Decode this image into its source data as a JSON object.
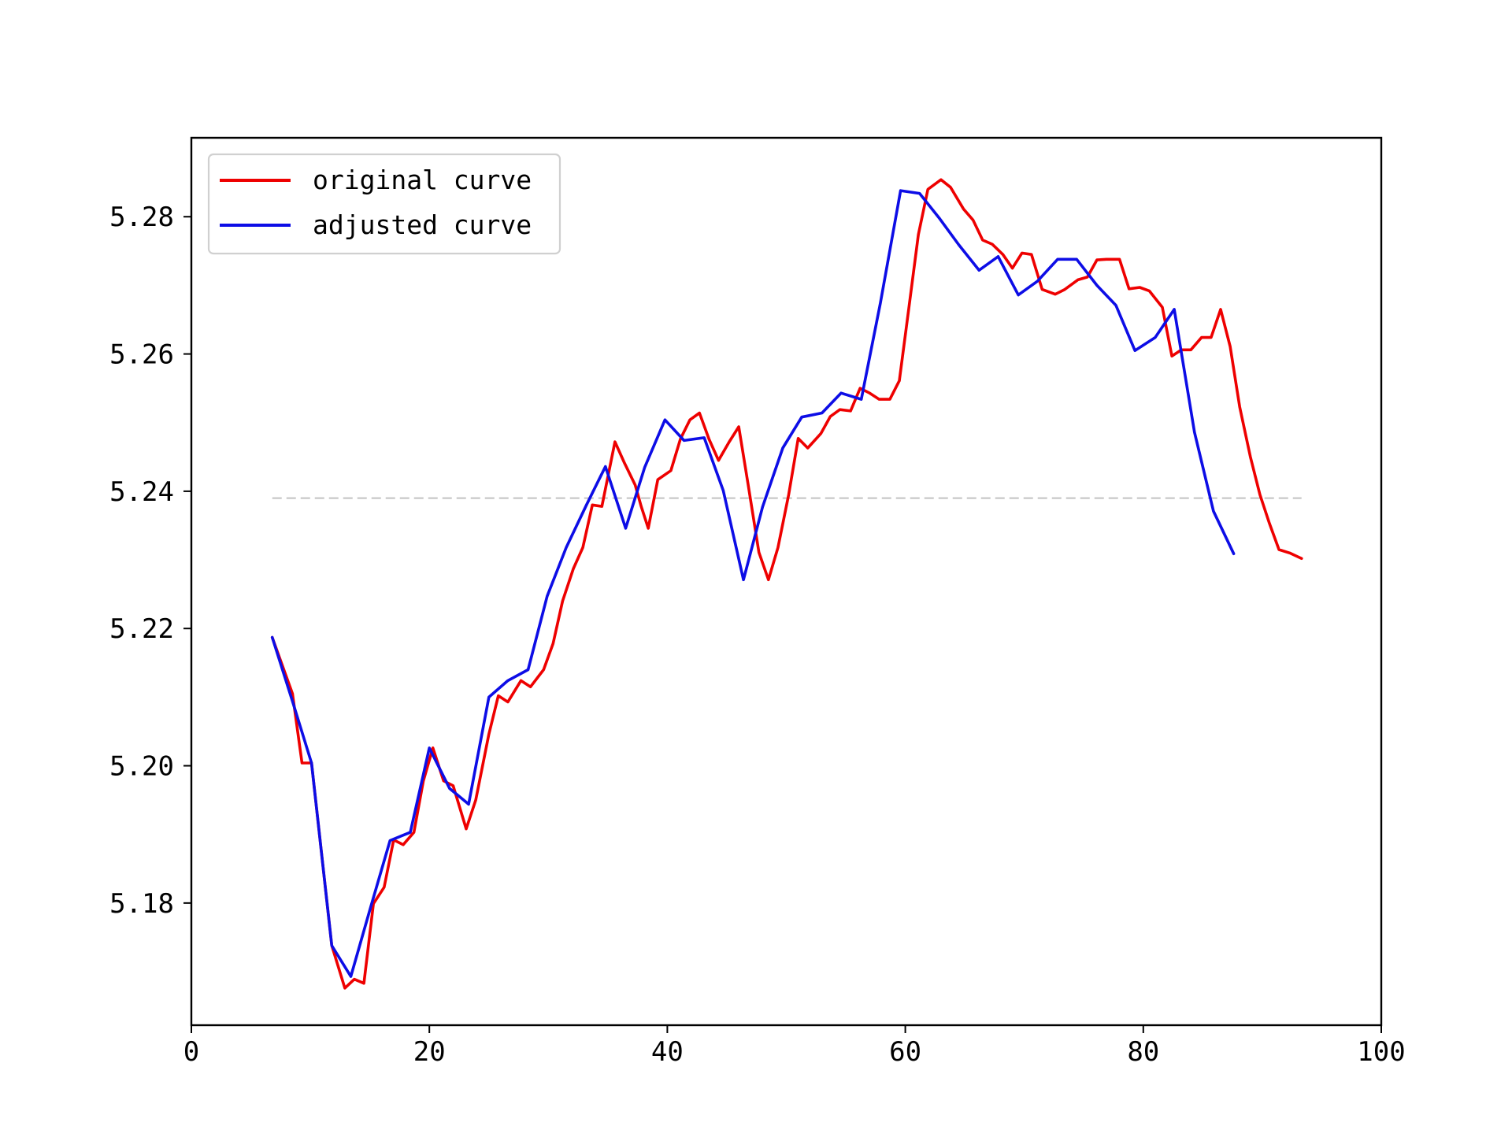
{
  "chart_data": {
    "type": "line",
    "title": "",
    "xlabel": "",
    "ylabel": "",
    "xlim": [
      0,
      100
    ],
    "ylim": [
      5.1622,
      5.2915
    ],
    "xticks": [
      0,
      20,
      40,
      60,
      80,
      100
    ],
    "yticks": [
      5.18,
      5.2,
      5.22,
      5.24,
      5.26,
      5.28
    ],
    "x_tick_labels": [
      "0",
      "20",
      "40",
      "60",
      "80",
      "100"
    ],
    "y_tick_labels": [
      "5.18",
      "5.20",
      "5.22",
      "5.24",
      "5.26",
      "5.28"
    ],
    "grid": false,
    "legend_position": "upper-left",
    "reference_line": {
      "y": 5.239,
      "x_start": 6.8,
      "x_end": 93.3,
      "color": "#c8c8c8",
      "style": "dashed"
    },
    "series": [
      {
        "name": "original curve",
        "color": "#ee0000",
        "points": [
          [
            6.8,
            5.2187
          ],
          [
            8.5,
            5.2105
          ],
          [
            9.3,
            5.2004
          ],
          [
            10.1,
            5.2004
          ],
          [
            11.8,
            5.1738
          ],
          [
            12.9,
            5.1676
          ],
          [
            13.7,
            5.1689
          ],
          [
            14.5,
            5.1683
          ],
          [
            15.3,
            5.1799
          ],
          [
            16.2,
            5.1823
          ],
          [
            17.0,
            5.1892
          ],
          [
            17.8,
            5.1885
          ],
          [
            18.7,
            5.1903
          ],
          [
            19.5,
            5.1978
          ],
          [
            20.3,
            5.2026
          ],
          [
            21.2,
            5.1978
          ],
          [
            22.0,
            5.1971
          ],
          [
            23.1,
            5.1908
          ],
          [
            23.9,
            5.195
          ],
          [
            25.0,
            5.2046
          ],
          [
            25.8,
            5.2102
          ],
          [
            26.6,
            5.2093
          ],
          [
            27.7,
            5.2124
          ],
          [
            28.5,
            5.2115
          ],
          [
            29.6,
            5.214
          ],
          [
            30.4,
            5.2178
          ],
          [
            31.2,
            5.224
          ],
          [
            32.1,
            5.2287
          ],
          [
            32.9,
            5.2318
          ],
          [
            33.7,
            5.238
          ],
          [
            34.5,
            5.2378
          ],
          [
            35.6,
            5.2472
          ],
          [
            36.4,
            5.2441
          ],
          [
            37.3,
            5.2409
          ],
          [
            37.8,
            5.2378
          ],
          [
            38.4,
            5.2346
          ],
          [
            39.2,
            5.2417
          ],
          [
            40.3,
            5.243
          ],
          [
            41.1,
            5.2476
          ],
          [
            41.9,
            5.2504
          ],
          [
            42.7,
            5.2514
          ],
          [
            43.5,
            5.2476
          ],
          [
            44.3,
            5.2445
          ],
          [
            45.2,
            5.2472
          ],
          [
            46.0,
            5.2494
          ],
          [
            46.8,
            5.2409
          ],
          [
            47.7,
            5.2311
          ],
          [
            48.5,
            5.2271
          ],
          [
            49.3,
            5.2318
          ],
          [
            50.2,
            5.2395
          ],
          [
            51.0,
            5.2477
          ],
          [
            51.8,
            5.2463
          ],
          [
            52.9,
            5.2484
          ],
          [
            53.7,
            5.2509
          ],
          [
            54.5,
            5.2519
          ],
          [
            55.4,
            5.2517
          ],
          [
            56.2,
            5.255
          ],
          [
            57.0,
            5.2543
          ],
          [
            57.8,
            5.2534
          ],
          [
            58.7,
            5.2534
          ],
          [
            59.5,
            5.2561
          ],
          [
            60.3,
            5.2667
          ],
          [
            61.1,
            5.2774
          ],
          [
            61.9,
            5.284
          ],
          [
            63.0,
            5.2854
          ],
          [
            63.8,
            5.2843
          ],
          [
            64.9,
            5.2811
          ],
          [
            65.7,
            5.2795
          ],
          [
            66.5,
            5.2766
          ],
          [
            67.3,
            5.276
          ],
          [
            68.2,
            5.2745
          ],
          [
            69.0,
            5.2725
          ],
          [
            69.8,
            5.2747
          ],
          [
            70.6,
            5.2745
          ],
          [
            71.5,
            5.2694
          ],
          [
            72.6,
            5.2687
          ],
          [
            73.4,
            5.2694
          ],
          [
            74.5,
            5.2708
          ],
          [
            75.3,
            5.2712
          ],
          [
            76.1,
            5.2737
          ],
          [
            76.9,
            5.2738
          ],
          [
            78.0,
            5.2738
          ],
          [
            78.8,
            5.2695
          ],
          [
            79.7,
            5.2697
          ],
          [
            80.5,
            5.2692
          ],
          [
            81.6,
            5.2668
          ],
          [
            82.4,
            5.2597
          ],
          [
            83.2,
            5.2606
          ],
          [
            84.0,
            5.2606
          ],
          [
            84.9,
            5.2624
          ],
          [
            85.7,
            5.2624
          ],
          [
            86.5,
            5.2665
          ],
          [
            87.3,
            5.2611
          ],
          [
            88.1,
            5.2523
          ],
          [
            89.0,
            5.245
          ],
          [
            89.8,
            5.2395
          ],
          [
            90.6,
            5.2353
          ],
          [
            91.4,
            5.2315
          ],
          [
            92.3,
            5.231
          ],
          [
            93.3,
            5.2302
          ]
        ]
      },
      {
        "name": "adjusted curve",
        "color": "#0d0de6",
        "points": [
          [
            6.8,
            5.2187
          ],
          [
            8.5,
            5.2094
          ],
          [
            10.1,
            5.2004
          ],
          [
            11.8,
            5.1738
          ],
          [
            13.4,
            5.1693
          ],
          [
            15.1,
            5.1796
          ],
          [
            16.7,
            5.1891
          ],
          [
            18.4,
            5.1903
          ],
          [
            20.0,
            5.2026
          ],
          [
            21.7,
            5.1967
          ],
          [
            23.3,
            5.1944
          ],
          [
            25.0,
            5.21
          ],
          [
            26.6,
            5.2124
          ],
          [
            28.3,
            5.214
          ],
          [
            29.9,
            5.2247
          ],
          [
            31.5,
            5.2318
          ],
          [
            33.2,
            5.238
          ],
          [
            34.8,
            5.2436
          ],
          [
            36.5,
            5.2346
          ],
          [
            38.1,
            5.2435
          ],
          [
            39.8,
            5.2504
          ],
          [
            41.4,
            5.2474
          ],
          [
            43.1,
            5.2478
          ],
          [
            44.7,
            5.2401
          ],
          [
            46.4,
            5.2271
          ],
          [
            48.0,
            5.2377
          ],
          [
            49.7,
            5.2463
          ],
          [
            51.3,
            5.2508
          ],
          [
            53.0,
            5.2514
          ],
          [
            54.6,
            5.2543
          ],
          [
            56.3,
            5.2534
          ],
          [
            57.9,
            5.2674
          ],
          [
            59.6,
            5.2838
          ],
          [
            61.2,
            5.2834
          ],
          [
            62.9,
            5.2797
          ],
          [
            64.5,
            5.2759
          ],
          [
            66.2,
            5.2722
          ],
          [
            67.8,
            5.2742
          ],
          [
            69.5,
            5.2686
          ],
          [
            71.1,
            5.2706
          ],
          [
            72.8,
            5.2738
          ],
          [
            74.4,
            5.2738
          ],
          [
            76.1,
            5.27
          ],
          [
            77.7,
            5.2671
          ],
          [
            79.3,
            5.2605
          ],
          [
            81.0,
            5.2624
          ],
          [
            82.6,
            5.2665
          ],
          [
            84.3,
            5.2486
          ],
          [
            85.9,
            5.2371
          ],
          [
            87.6,
            5.2309
          ]
        ]
      }
    ]
  }
}
